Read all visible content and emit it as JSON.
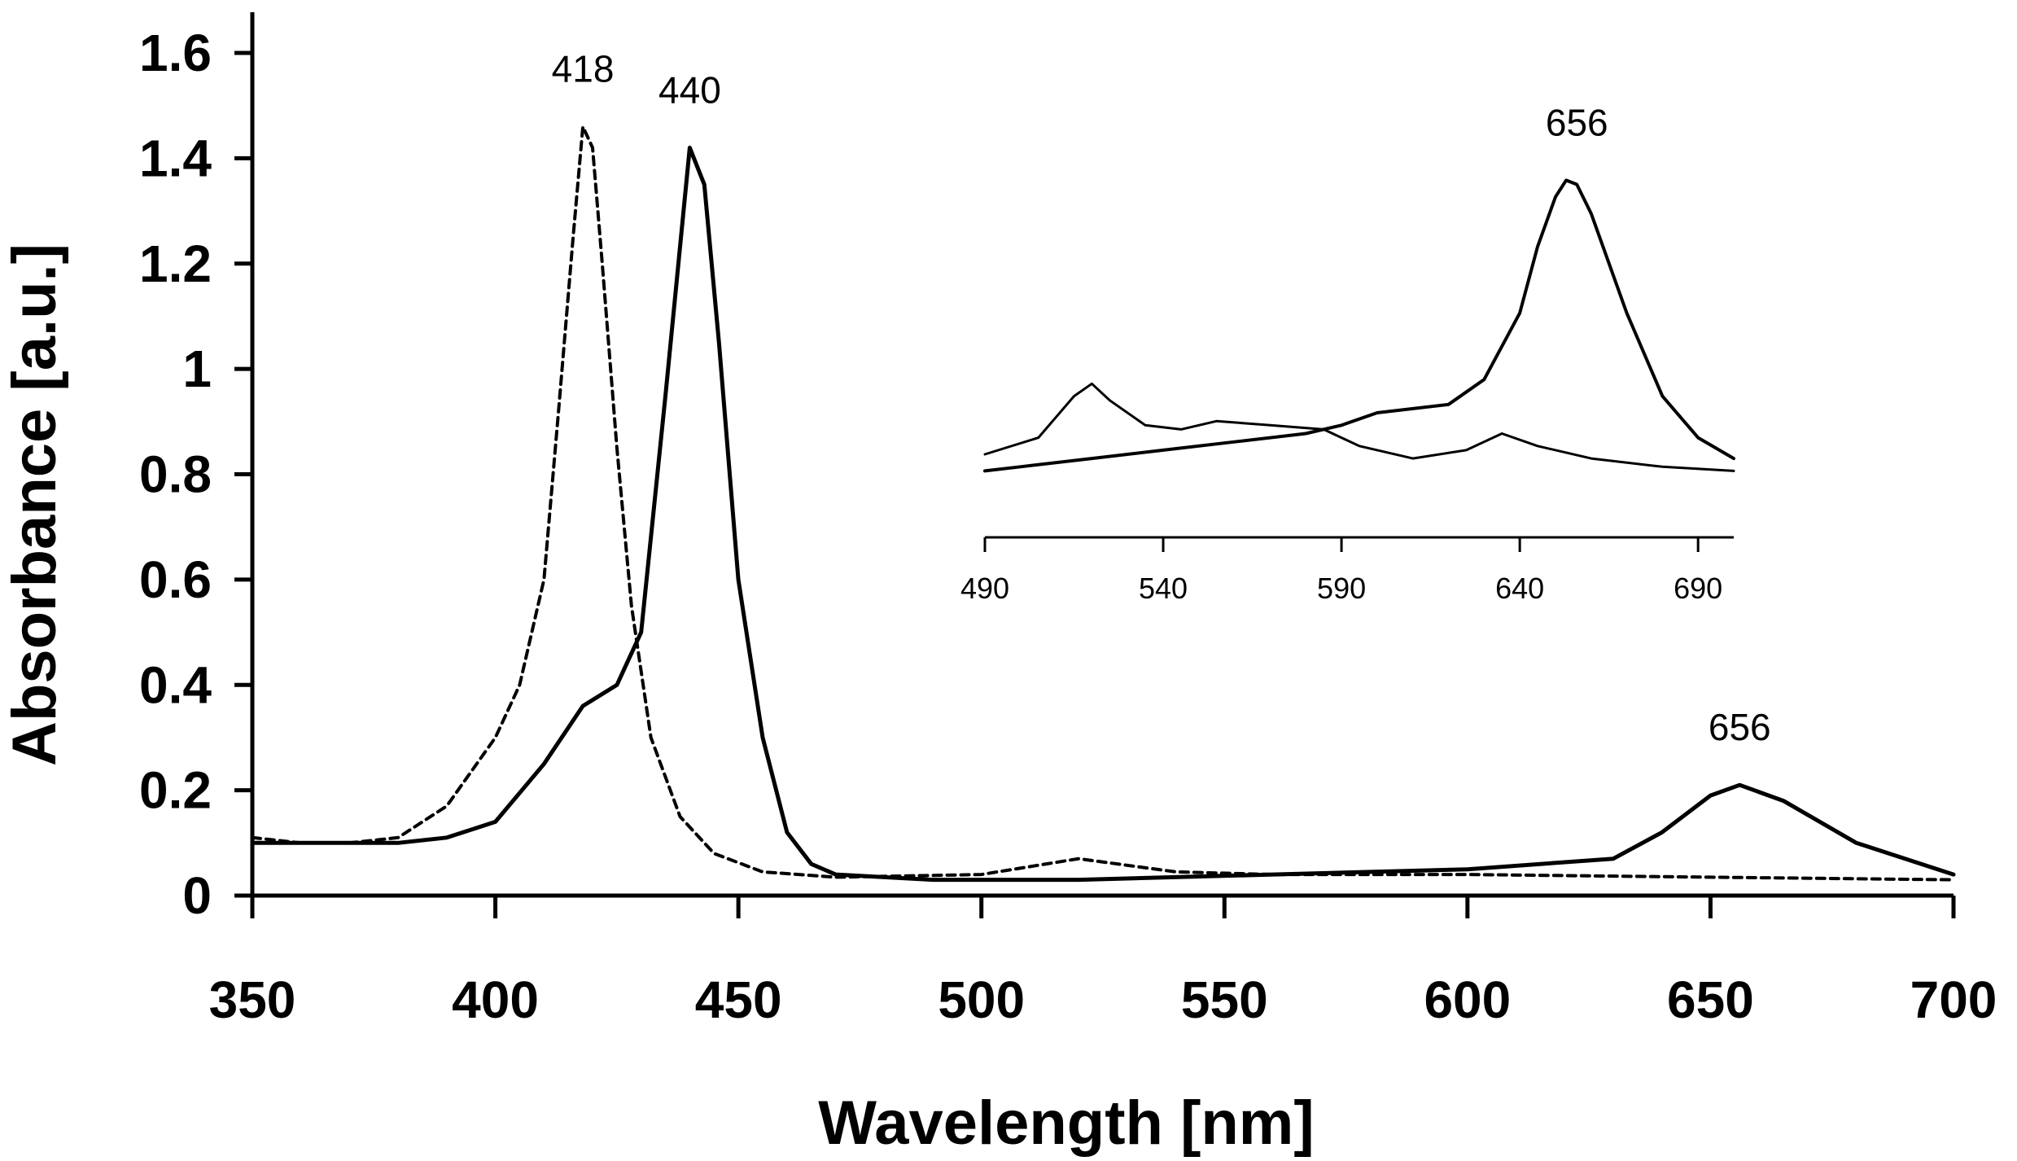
{
  "chart_data": [
    {
      "type": "line",
      "role": "main",
      "title": "",
      "xlabel": "Wavelength [nm]",
      "ylabel": "Absorbance [a.u.]",
      "xlim": [
        350,
        700
      ],
      "ylim": [
        0,
        1.6
      ],
      "x_ticks": [
        350,
        400,
        450,
        500,
        550,
        600,
        650,
        700
      ],
      "x_tick_labels": [
        "350",
        "400",
        "450",
        "500",
        "550",
        "600",
        "650",
        "700"
      ],
      "y_ticks": [
        0,
        0.2,
        0.4,
        0.6,
        0.8,
        1,
        1.2,
        1.4,
        1.6
      ],
      "y_tick_labels": [
        "0",
        "0.2",
        "0.4",
        "0.6",
        "0.8",
        "1",
        "1.2",
        "1.4",
        "1.6"
      ],
      "grid": false,
      "series": [
        {
          "name": "dashed spectrum (peak 418)",
          "style": "dashed",
          "points": [
            [
              350,
              0.11
            ],
            [
              360,
              0.1
            ],
            [
              370,
              0.1
            ],
            [
              380,
              0.11
            ],
            [
              390,
              0.17
            ],
            [
              400,
              0.3
            ],
            [
              405,
              0.4
            ],
            [
              410,
              0.6
            ],
            [
              413,
              0.92
            ],
            [
              416,
              1.25
            ],
            [
              418,
              1.46
            ],
            [
              420,
              1.42
            ],
            [
              422,
              1.2
            ],
            [
              425,
              0.85
            ],
            [
              428,
              0.55
            ],
            [
              432,
              0.3
            ],
            [
              438,
              0.15
            ],
            [
              445,
              0.08
            ],
            [
              455,
              0.045
            ],
            [
              470,
              0.035
            ],
            [
              500,
              0.04
            ],
            [
              520,
              0.07
            ],
            [
              540,
              0.045
            ],
            [
              560,
              0.04
            ],
            [
              600,
              0.04
            ],
            [
              650,
              0.035
            ],
            [
              700,
              0.03
            ]
          ]
        },
        {
          "name": "solid spectrum (peaks 440, 656)",
          "style": "solid",
          "points": [
            [
              350,
              0.1
            ],
            [
              360,
              0.1
            ],
            [
              380,
              0.1
            ],
            [
              390,
              0.11
            ],
            [
              400,
              0.14
            ],
            [
              410,
              0.25
            ],
            [
              418,
              0.36
            ],
            [
              425,
              0.4
            ],
            [
              430,
              0.5
            ],
            [
              435,
              0.95
            ],
            [
              440,
              1.42
            ],
            [
              443,
              1.35
            ],
            [
              446,
              1.05
            ],
            [
              450,
              0.6
            ],
            [
              455,
              0.3
            ],
            [
              460,
              0.12
            ],
            [
              465,
              0.06
            ],
            [
              470,
              0.04
            ],
            [
              490,
              0.03
            ],
            [
              520,
              0.03
            ],
            [
              560,
              0.04
            ],
            [
              600,
              0.05
            ],
            [
              630,
              0.07
            ],
            [
              640,
              0.12
            ],
            [
              650,
              0.19
            ],
            [
              656,
              0.21
            ],
            [
              665,
              0.18
            ],
            [
              680,
              0.1
            ],
            [
              700,
              0.04
            ]
          ]
        }
      ],
      "annotations": [
        {
          "text": "418",
          "x": 418,
          "y": 1.46
        },
        {
          "text": "440",
          "x": 440,
          "y": 1.42
        },
        {
          "text": "656",
          "x": 656,
          "y": 0.21
        }
      ]
    },
    {
      "type": "line",
      "role": "inset",
      "xlim": [
        490,
        700
      ],
      "ylim": [
        0,
        0.05
      ],
      "x_ticks": [
        490,
        540,
        590,
        640,
        690
      ],
      "x_tick_labels": [
        "490",
        "540",
        "590",
        "640",
        "690"
      ],
      "series": [
        {
          "name": "inset solid spectrum (peak 656)",
          "style": "solid",
          "points": [
            [
              490,
              0.008
            ],
            [
              500,
              0.0085
            ],
            [
              520,
              0.0095
            ],
            [
              540,
              0.0105
            ],
            [
              560,
              0.0115
            ],
            [
              580,
              0.0125
            ],
            [
              590,
              0.0135
            ],
            [
              600,
              0.015
            ],
            [
              620,
              0.016
            ],
            [
              630,
              0.019
            ],
            [
              640,
              0.027
            ],
            [
              645,
              0.035
            ],
            [
              650,
              0.041
            ],
            [
              653,
              0.043
            ],
            [
              656,
              0.0425
            ],
            [
              660,
              0.039
            ],
            [
              670,
              0.027
            ],
            [
              680,
              0.017
            ],
            [
              690,
              0.012
            ],
            [
              700,
              0.0095
            ]
          ]
        },
        {
          "name": "inset thin spectrum",
          "style": "solid-thin",
          "points": [
            [
              490,
              0.01
            ],
            [
              505,
              0.012
            ],
            [
              515,
              0.017
            ],
            [
              520,
              0.0185
            ],
            [
              525,
              0.0165
            ],
            [
              535,
              0.0135
            ],
            [
              545,
              0.013
            ],
            [
              555,
              0.014
            ],
            [
              570,
              0.0135
            ],
            [
              585,
              0.013
            ],
            [
              595,
              0.011
            ],
            [
              610,
              0.0095
            ],
            [
              625,
              0.0105
            ],
            [
              635,
              0.0125
            ],
            [
              645,
              0.011
            ],
            [
              660,
              0.0095
            ],
            [
              680,
              0.0085
            ],
            [
              700,
              0.008
            ]
          ]
        }
      ],
      "annotations": [
        {
          "text": "656",
          "x": 656,
          "y": 0.043
        }
      ]
    }
  ]
}
